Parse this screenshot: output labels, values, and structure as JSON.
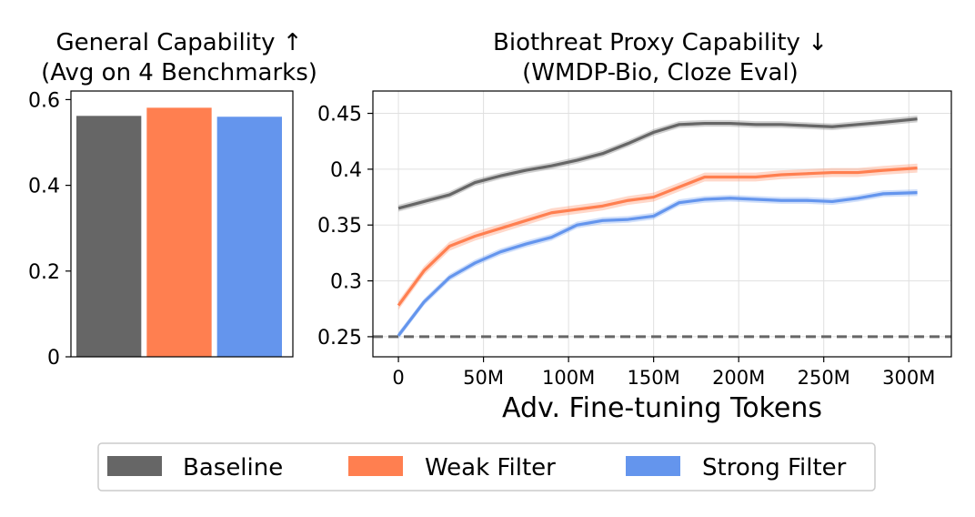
{
  "colors": {
    "baseline": "#666666",
    "weak": "#ff7f50",
    "strong": "#6495ed",
    "chance": "#666666"
  },
  "legend": [
    {
      "label": "Baseline",
      "color": "#666666"
    },
    {
      "label": "Weak Filter",
      "color": "#ff7f50"
    },
    {
      "label": "Strong Filter",
      "color": "#6495ed"
    }
  ],
  "chart_data": [
    {
      "type": "bar",
      "title": "General Capability ↑",
      "subtitle": "(Avg on 4 Benchmarks)",
      "categories": [
        "Baseline",
        "Weak Filter",
        "Strong Filter"
      ],
      "values": [
        0.562,
        0.581,
        0.56
      ],
      "ylim": [
        0,
        0.62
      ],
      "yticks": [
        0,
        0.2,
        0.4,
        0.6
      ],
      "ytick_labels": [
        "0",
        "0.2",
        "0.4",
        "0.6"
      ],
      "xlabel": "",
      "ylabel": ""
    },
    {
      "type": "line",
      "title": "Biothreat Proxy Capability ↓",
      "subtitle": "(WMDP-Bio, Cloze Eval)",
      "xlabel": "Adv. Fine-tuning Tokens",
      "ylabel": "",
      "xlim": [
        -15,
        325
      ],
      "ylim": [
        0.232,
        0.47
      ],
      "xticks": [
        0,
        50,
        100,
        150,
        200,
        250,
        300
      ],
      "xtick_labels": [
        "0",
        "50M",
        "100M",
        "150M",
        "200M",
        "250M",
        "300M"
      ],
      "yticks": [
        0.25,
        0.3,
        0.35,
        0.4,
        0.45
      ],
      "ytick_labels": [
        "0.25",
        "0.3",
        "0.35",
        "0.4",
        "0.45"
      ],
      "hline": {
        "y": 0.25,
        "style": "dashed"
      },
      "x": [
        0,
        15,
        30,
        45,
        60,
        75,
        90,
        105,
        120,
        135,
        150,
        165,
        180,
        195,
        210,
        225,
        240,
        255,
        270,
        285,
        305
      ],
      "series": [
        {
          "name": "Baseline",
          "values": [
            0.365,
            0.371,
            0.377,
            0.388,
            0.394,
            0.399,
            0.403,
            0.408,
            0.414,
            0.423,
            0.433,
            0.44,
            0.441,
            0.441,
            0.44,
            0.44,
            0.439,
            0.438,
            0.44,
            0.442,
            0.445
          ],
          "band": 0.003
        },
        {
          "name": "Weak Filter",
          "values": [
            0.278,
            0.309,
            0.331,
            0.34,
            0.347,
            0.354,
            0.361,
            0.364,
            0.367,
            0.372,
            0.375,
            0.384,
            0.393,
            0.393,
            0.393,
            0.395,
            0.396,
            0.397,
            0.397,
            0.399,
            0.401
          ],
          "band": 0.004
        },
        {
          "name": "Strong Filter",
          "values": [
            0.251,
            0.281,
            0.303,
            0.316,
            0.326,
            0.333,
            0.339,
            0.35,
            0.354,
            0.355,
            0.358,
            0.37,
            0.373,
            0.374,
            0.373,
            0.372,
            0.372,
            0.371,
            0.374,
            0.378,
            0.379
          ],
          "band": 0.003
        }
      ]
    }
  ]
}
